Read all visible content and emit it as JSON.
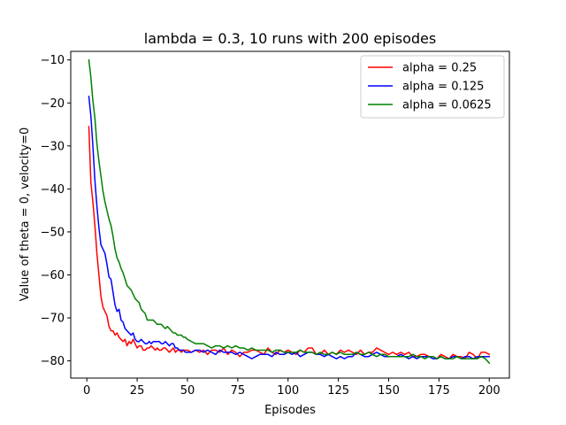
{
  "chart_data": {
    "type": "line",
    "title": "lambda = 0.3, 10 runs with 200 episodes",
    "xlabel": "Episodes",
    "ylabel": "Value of theta = 0, velocity=0",
    "xlim": [
      -8,
      210
    ],
    "ylim": [
      -84,
      -8
    ],
    "xticks": [
      0,
      25,
      50,
      75,
      100,
      125,
      150,
      175,
      200
    ],
    "yticks": [
      -10,
      -20,
      -30,
      -40,
      -50,
      -60,
      -70,
      -80
    ],
    "grid": false,
    "legend_position": "upper right",
    "x": [
      1,
      2,
      3,
      4,
      5,
      6,
      7,
      8,
      9,
      10,
      11,
      12,
      13,
      14,
      15,
      16,
      17,
      18,
      19,
      20,
      21,
      22,
      23,
      24,
      25,
      26,
      27,
      28,
      29,
      30,
      31,
      32,
      33,
      34,
      35,
      36,
      37,
      38,
      39,
      40,
      41,
      42,
      43,
      44,
      45,
      46,
      47,
      48,
      49,
      50,
      52,
      54,
      56,
      58,
      60,
      62,
      64,
      66,
      68,
      70,
      72,
      74,
      76,
      78,
      80,
      82,
      84,
      86,
      88,
      90,
      92,
      94,
      96,
      98,
      100,
      102,
      104,
      106,
      108,
      110,
      112,
      114,
      116,
      118,
      120,
      122,
      124,
      126,
      128,
      130,
      132,
      134,
      136,
      138,
      140,
      142,
      144,
      146,
      148,
      150,
      152,
      154,
      156,
      158,
      160,
      162,
      164,
      166,
      168,
      170,
      172,
      174,
      176,
      178,
      180,
      182,
      184,
      186,
      188,
      190,
      192,
      194,
      196,
      198,
      200
    ],
    "series": [
      {
        "name": "alpha = 0.25",
        "color": "#ff0000",
        "values": [
          -25.5,
          -38.5,
          -43.0,
          -48.5,
          -55.0,
          -60.0,
          -65.0,
          -67.5,
          -68.5,
          -69.5,
          -72.0,
          -73.0,
          -73.0,
          -74.0,
          -73.5,
          -74.5,
          -75.0,
          -75.5,
          -75.0,
          -76.5,
          -75.5,
          -76.0,
          -75.0,
          -76.0,
          -77.0,
          -76.5,
          -76.5,
          -77.5,
          -77.5,
          -77.0,
          -77.0,
          -76.5,
          -77.0,
          -77.5,
          -77.0,
          -77.5,
          -77.5,
          -77.0,
          -77.0,
          -77.5,
          -78.0,
          -77.5,
          -77.0,
          -78.0,
          -77.5,
          -77.5,
          -78.0,
          -77.5,
          -77.5,
          -77.5,
          -78.0,
          -77.5,
          -78.0,
          -77.5,
          -78.5,
          -77.5,
          -77.5,
          -78.0,
          -77.0,
          -78.5,
          -77.5,
          -78.0,
          -79.0,
          -78.0,
          -78.0,
          -77.5,
          -77.5,
          -78.0,
          -78.5,
          -77.0,
          -78.0,
          -78.5,
          -77.5,
          -78.0,
          -77.5,
          -78.0,
          -78.5,
          -77.5,
          -78.0,
          -77.0,
          -77.0,
          -78.5,
          -78.5,
          -77.5,
          -78.5,
          -78.0,
          -78.5,
          -77.5,
          -78.0,
          -77.5,
          -78.0,
          -78.5,
          -77.5,
          -78.5,
          -78.0,
          -78.0,
          -77.0,
          -77.5,
          -78.0,
          -78.5,
          -78.0,
          -78.5,
          -78.0,
          -78.5,
          -78.0,
          -79.0,
          -79.0,
          -78.5,
          -78.5,
          -79.0,
          -79.0,
          -79.5,
          -78.5,
          -79.0,
          -79.5,
          -78.5,
          -79.0,
          -79.0,
          -79.5,
          -78.0,
          -78.5,
          -79.5,
          -78.0,
          -78.0,
          -78.5
        ]
      },
      {
        "name": "alpha = 0.125",
        "color": "#0000ff",
        "values": [
          -18.5,
          -23.0,
          -30.0,
          -38.0,
          -44.0,
          -49.0,
          -53.0,
          -54.0,
          -55.0,
          -57.5,
          -60.5,
          -61.0,
          -64.0,
          -67.0,
          -68.5,
          -68.0,
          -70.5,
          -71.0,
          -72.5,
          -73.0,
          -73.5,
          -74.0,
          -73.5,
          -75.0,
          -75.5,
          -75.5,
          -75.0,
          -75.5,
          -76.0,
          -76.0,
          -75.5,
          -76.0,
          -75.5,
          -75.5,
          -75.5,
          -75.5,
          -76.0,
          -76.0,
          -75.5,
          -76.0,
          -76.5,
          -76.0,
          -76.0,
          -77.0,
          -77.0,
          -77.5,
          -77.5,
          -77.5,
          -78.0,
          -78.0,
          -78.0,
          -77.5,
          -77.5,
          -78.0,
          -77.5,
          -78.0,
          -78.5,
          -77.5,
          -78.0,
          -78.0,
          -78.0,
          -78.5,
          -78.0,
          -78.5,
          -79.0,
          -79.5,
          -79.0,
          -78.5,
          -78.5,
          -78.5,
          -79.0,
          -78.0,
          -78.5,
          -78.5,
          -78.0,
          -78.5,
          -78.0,
          -79.0,
          -78.5,
          -78.0,
          -78.0,
          -78.5,
          -78.5,
          -79.0,
          -78.5,
          -79.0,
          -79.5,
          -79.0,
          -79.5,
          -79.0,
          -79.0,
          -78.0,
          -78.5,
          -79.0,
          -79.0,
          -78.5,
          -78.0,
          -78.5,
          -79.0,
          -79.0,
          -79.0,
          -79.0,
          -78.5,
          -79.0,
          -79.5,
          -79.0,
          -79.5,
          -79.0,
          -79.0,
          -79.0,
          -79.5,
          -79.5,
          -79.0,
          -79.5,
          -79.5,
          -79.0,
          -79.0,
          -79.5,
          -79.0,
          -79.0,
          -79.5,
          -79.0,
          -79.0,
          -79.0,
          -79.0
        ]
      },
      {
        "name": "alpha = 0.0625",
        "color": "#008000",
        "values": [
          -10.0,
          -14.0,
          -19.5,
          -23.5,
          -29.5,
          -33.5,
          -37.0,
          -40.5,
          -43.0,
          -45.0,
          -47.0,
          -48.5,
          -51.0,
          -54.0,
          -56.0,
          -57.0,
          -58.5,
          -59.5,
          -61.0,
          -62.5,
          -63.0,
          -63.5,
          -64.5,
          -65.5,
          -66.0,
          -66.5,
          -68.0,
          -68.5,
          -69.0,
          -70.5,
          -70.5,
          -70.5,
          -70.5,
          -71.0,
          -71.5,
          -71.5,
          -71.5,
          -72.0,
          -72.5,
          -72.0,
          -72.5,
          -73.0,
          -73.5,
          -73.5,
          -74.0,
          -74.0,
          -74.0,
          -74.5,
          -74.5,
          -75.0,
          -75.5,
          -76.0,
          -76.0,
          -76.0,
          -76.5,
          -77.0,
          -76.5,
          -76.5,
          -77.0,
          -76.5,
          -77.0,
          -76.5,
          -77.0,
          -77.0,
          -77.5,
          -77.0,
          -77.5,
          -77.5,
          -77.5,
          -77.5,
          -78.0,
          -77.5,
          -77.5,
          -78.0,
          -78.0,
          -78.0,
          -78.0,
          -77.5,
          -78.0,
          -78.0,
          -78.0,
          -78.5,
          -78.0,
          -78.5,
          -78.5,
          -78.0,
          -78.5,
          -78.0,
          -78.5,
          -78.5,
          -78.5,
          -78.0,
          -78.5,
          -78.5,
          -78.0,
          -78.5,
          -79.0,
          -78.5,
          -78.5,
          -79.0,
          -79.0,
          -79.0,
          -79.0,
          -79.0,
          -79.0,
          -78.5,
          -79.0,
          -79.0,
          -79.5,
          -79.0,
          -79.0,
          -79.5,
          -79.0,
          -79.5,
          -79.5,
          -79.5,
          -79.0,
          -79.5,
          -79.5,
          -79.5,
          -79.5,
          -79.5,
          -79.0,
          -79.5,
          -80.5
        ]
      }
    ]
  }
}
